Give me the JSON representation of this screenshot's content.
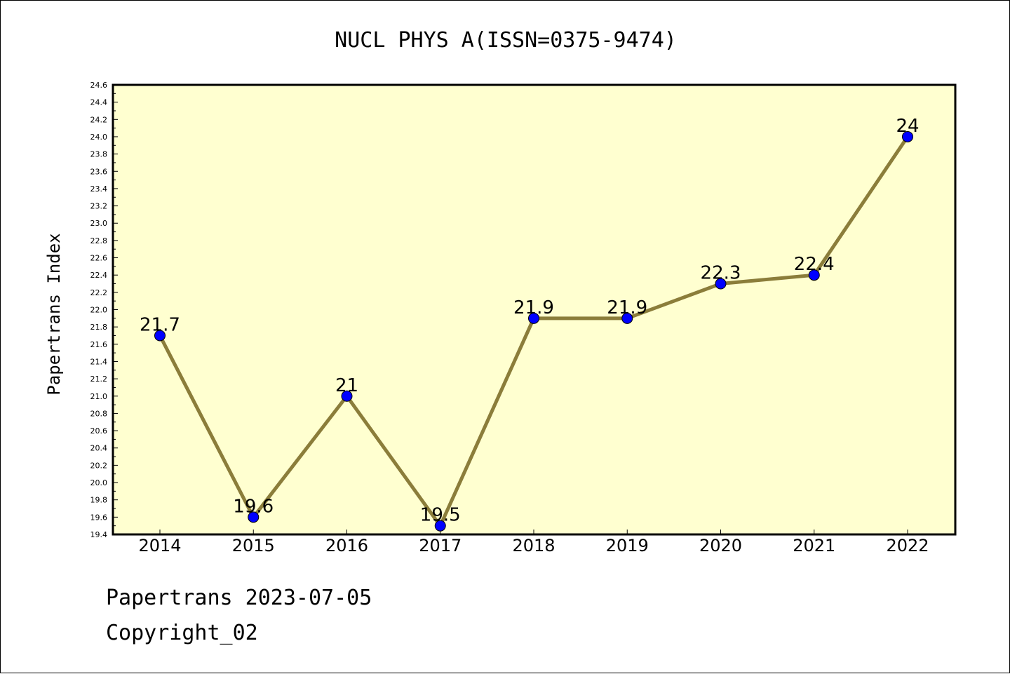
{
  "chart_data": {
    "type": "line",
    "title": "NUCL PHYS A(ISSN=0375-9474)",
    "xlabel": "",
    "ylabel": "Papertrans Index",
    "categories": [
      "2014",
      "2015",
      "2016",
      "2017",
      "2018",
      "2019",
      "2020",
      "2021",
      "2022"
    ],
    "series": [
      {
        "values": [
          21.7,
          19.6,
          21.0,
          19.5,
          21.9,
          21.9,
          22.3,
          22.4,
          24.0
        ]
      }
    ],
    "data_labels": [
      "21.7",
      "19.6",
      "21",
      "19.5",
      "21.9",
      "21.9",
      "22.3",
      "22.4",
      "24"
    ],
    "ylim": [
      19.4,
      24.6
    ],
    "yticks": [
      "19.4",
      "19.6",
      "19.8",
      "20.0",
      "20.2",
      "20.4",
      "20.6",
      "20.8",
      "21.0",
      "21.2",
      "21.4",
      "21.6",
      "21.8",
      "22.0",
      "22.2",
      "22.4",
      "22.6",
      "22.8",
      "23.0",
      "23.2",
      "23.4",
      "23.6",
      "23.8",
      "24.0",
      "24.2",
      "24.4",
      "24.6"
    ],
    "grid": false,
    "colors": {
      "plot_background": "#FFFFD0",
      "line": "#8B7D3A",
      "marker": "#0000FF"
    }
  },
  "footer": {
    "line1": "Papertrans 2023-07-05",
    "line2": "Copyright_02"
  }
}
